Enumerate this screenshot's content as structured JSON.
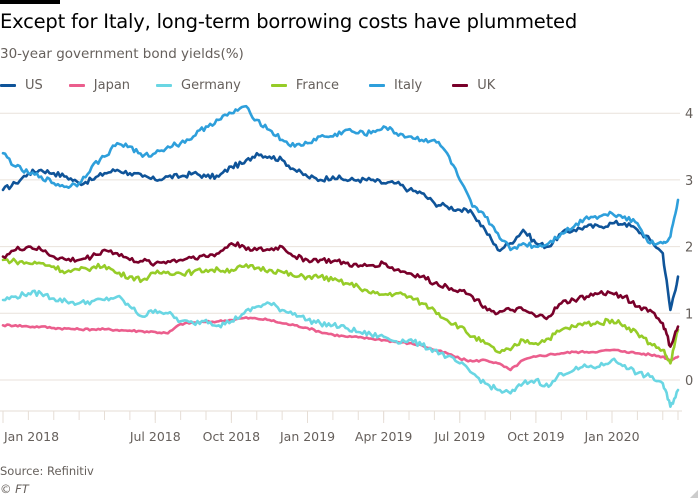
{
  "header": {
    "title": "Except for Italy, long-term borrowing costs have plummeted",
    "subtitle": "30-year government bond yields(%)"
  },
  "footer": {
    "source": "Source: Refinitiv",
    "copyright": "© FT"
  },
  "chart_data": {
    "type": "line",
    "title": "Except for Italy, long-term borrowing costs have plummeted",
    "subtitle": "30-year government bond yields(%)",
    "xlabel": "",
    "ylabel": "30-year government bond yields(%)",
    "x_unit": "months since Jan 2018",
    "xlim": [
      0,
      26.6
    ],
    "ylim": [
      -0.5,
      4.0
    ],
    "yticks": [
      0,
      1,
      2,
      3,
      4
    ],
    "ytick_labels": [
      "0",
      "1",
      "2",
      "3",
      "4"
    ],
    "xticks": [
      0,
      6,
      9,
      12,
      15,
      18,
      21,
      24
    ],
    "xtick_labels": [
      "Jan 2018",
      "Jul 2018",
      "Oct 2018",
      "Jan 2019",
      "Apr 2019",
      "Jul 2019",
      "Oct 2019",
      "Jan 2020"
    ],
    "minor_xticks": [
      0,
      1,
      2,
      3,
      4,
      5,
      6,
      7,
      8,
      9,
      10,
      11,
      12,
      13,
      14,
      15,
      16,
      17,
      18,
      19,
      20,
      21,
      22,
      23,
      24,
      25,
      26
    ],
    "grid": true,
    "legend_position": "top-left",
    "x": [
      0,
      0.5,
      1,
      1.5,
      2,
      2.5,
      3,
      3.5,
      4,
      4.5,
      5,
      5.5,
      6,
      6.5,
      7,
      7.5,
      8,
      8.5,
      9,
      9.5,
      10,
      10.5,
      11,
      11.5,
      12,
      12.5,
      13,
      13.5,
      14,
      14.5,
      15,
      15.5,
      16,
      16.5,
      17,
      17.5,
      18,
      18.5,
      19,
      19.5,
      20,
      20.5,
      21,
      21.5,
      22,
      22.5,
      23,
      23.5,
      24,
      24.5,
      25,
      25.5,
      26,
      26.3,
      26.6
    ],
    "series": [
      {
        "name": "US",
        "color": "#0f5499",
        "values": [
          2.85,
          2.95,
          3.1,
          3.15,
          3.1,
          3.05,
          2.95,
          3.0,
          3.1,
          3.15,
          3.1,
          3.05,
          3.0,
          3.05,
          3.05,
          3.1,
          3.05,
          3.05,
          3.2,
          3.25,
          3.4,
          3.35,
          3.3,
          3.15,
          3.05,
          3.0,
          3.05,
          3.0,
          3.0,
          3.0,
          2.95,
          2.95,
          2.85,
          2.8,
          2.65,
          2.6,
          2.55,
          2.5,
          2.25,
          1.95,
          2.05,
          2.25,
          2.05,
          2.0,
          2.2,
          2.25,
          2.3,
          2.3,
          2.35,
          2.35,
          2.25,
          2.1,
          1.9,
          1.05,
          1.55
        ]
      },
      {
        "name": "Japan",
        "color": "#eb5e8d",
        "values": [
          0.82,
          0.82,
          0.8,
          0.8,
          0.78,
          0.77,
          0.76,
          0.76,
          0.76,
          0.75,
          0.74,
          0.73,
          0.72,
          0.7,
          0.84,
          0.86,
          0.87,
          0.88,
          0.9,
          0.93,
          0.92,
          0.9,
          0.85,
          0.82,
          0.78,
          0.72,
          0.68,
          0.65,
          0.64,
          0.62,
          0.6,
          0.57,
          0.55,
          0.52,
          0.45,
          0.4,
          0.32,
          0.28,
          0.3,
          0.25,
          0.15,
          0.3,
          0.35,
          0.38,
          0.4,
          0.42,
          0.42,
          0.43,
          0.45,
          0.43,
          0.4,
          0.38,
          0.35,
          0.3,
          0.35
        ]
      },
      {
        "name": "Germany",
        "color": "#6ad6e3",
        "values": [
          1.2,
          1.25,
          1.3,
          1.3,
          1.22,
          1.18,
          1.15,
          1.18,
          1.2,
          1.25,
          1.1,
          0.95,
          1.05,
          1.0,
          0.88,
          0.85,
          0.9,
          0.82,
          0.88,
          1.0,
          1.1,
          1.15,
          1.05,
          1.0,
          0.9,
          0.85,
          0.82,
          0.78,
          0.72,
          0.68,
          0.65,
          0.58,
          0.6,
          0.52,
          0.45,
          0.35,
          0.25,
          0.1,
          -0.05,
          -0.15,
          -0.2,
          -0.05,
          0.0,
          -0.1,
          0.1,
          0.15,
          0.2,
          0.2,
          0.3,
          0.22,
          0.1,
          0.05,
          -0.05,
          -0.4,
          -0.15
        ]
      },
      {
        "name": "France",
        "color": "#96cc28",
        "values": [
          1.8,
          1.78,
          1.75,
          1.75,
          1.7,
          1.62,
          1.65,
          1.68,
          1.72,
          1.6,
          1.55,
          1.5,
          1.6,
          1.62,
          1.6,
          1.62,
          1.65,
          1.65,
          1.65,
          1.7,
          1.68,
          1.65,
          1.62,
          1.55,
          1.55,
          1.55,
          1.5,
          1.45,
          1.4,
          1.3,
          1.28,
          1.3,
          1.25,
          1.15,
          1.05,
          0.9,
          0.8,
          0.65,
          0.55,
          0.42,
          0.45,
          0.6,
          0.55,
          0.62,
          0.75,
          0.8,
          0.85,
          0.85,
          0.9,
          0.82,
          0.7,
          0.55,
          0.45,
          0.25,
          0.75
        ]
      },
      {
        "name": "Italy",
        "color": "#2e9fdb",
        "values": [
          3.4,
          3.2,
          3.1,
          3.05,
          2.95,
          2.9,
          2.95,
          3.2,
          3.35,
          3.55,
          3.5,
          3.35,
          3.4,
          3.5,
          3.55,
          3.65,
          3.8,
          3.9,
          4.0,
          4.1,
          3.9,
          3.75,
          3.6,
          3.5,
          3.55,
          3.65,
          3.65,
          3.75,
          3.7,
          3.7,
          3.8,
          3.7,
          3.65,
          3.6,
          3.6,
          3.4,
          3.0,
          2.6,
          2.45,
          2.2,
          1.95,
          2.05,
          2.0,
          2.05,
          2.2,
          2.3,
          2.45,
          2.45,
          2.5,
          2.45,
          2.35,
          2.05,
          2.05,
          2.15,
          2.7
        ]
      },
      {
        "name": "UK",
        "color": "#79002a",
        "values": [
          1.85,
          1.95,
          2.0,
          1.95,
          1.85,
          1.8,
          1.8,
          1.85,
          1.95,
          1.9,
          1.8,
          1.78,
          1.75,
          1.78,
          1.8,
          1.85,
          1.85,
          1.9,
          2.05,
          2.0,
          1.95,
          1.95,
          2.0,
          1.85,
          1.8,
          1.8,
          1.78,
          1.75,
          1.7,
          1.72,
          1.75,
          1.65,
          1.6,
          1.55,
          1.45,
          1.4,
          1.35,
          1.25,
          1.1,
          1.0,
          1.05,
          1.05,
          0.95,
          0.95,
          1.15,
          1.2,
          1.25,
          1.3,
          1.3,
          1.25,
          1.1,
          1.05,
          0.85,
          0.5,
          0.8
        ]
      }
    ]
  }
}
